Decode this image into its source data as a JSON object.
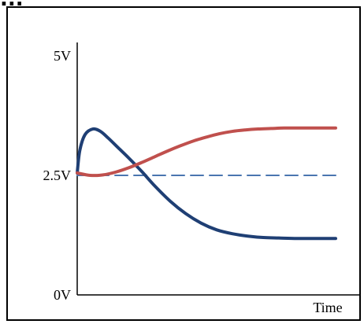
{
  "header": {
    "text": "..."
  },
  "chart_data": {
    "type": "line",
    "title": "",
    "xlabel": "Time",
    "ylabel": "",
    "y_ticks": [
      {
        "value": 5,
        "label": "5V"
      },
      {
        "value": 2.5,
        "label": "2.5V"
      },
      {
        "value": 0,
        "label": "0V"
      }
    ],
    "ylim": [
      0,
      5
    ],
    "xlim": [
      0,
      1
    ],
    "grid": false,
    "legend": "none",
    "series": [
      {
        "color": "#1f3f74",
        "style": "solid",
        "x": [
          0.0,
          0.01,
          0.03,
          0.06,
          0.09,
          0.12,
          0.16,
          0.2,
          0.25,
          0.3,
          0.36,
          0.42,
          0.48,
          0.54,
          0.6,
          0.66,
          0.72,
          0.78,
          0.85,
          0.92,
          1.0
        ],
        "y": [
          2.55,
          3.02,
          3.35,
          3.47,
          3.42,
          3.28,
          3.07,
          2.86,
          2.58,
          2.28,
          1.96,
          1.7,
          1.5,
          1.36,
          1.28,
          1.23,
          1.2,
          1.19,
          1.18,
          1.18,
          1.18
        ]
      },
      {
        "color": "#c0504d",
        "style": "solid",
        "x": [
          0.0,
          0.05,
          0.1,
          0.15,
          0.2,
          0.25,
          0.3,
          0.35,
          0.4,
          0.45,
          0.5,
          0.55,
          0.6,
          0.65,
          0.7,
          0.75,
          0.8,
          0.85,
          0.9,
          1.0
        ],
        "y": [
          2.55,
          2.5,
          2.51,
          2.57,
          2.66,
          2.77,
          2.89,
          3.01,
          3.12,
          3.22,
          3.3,
          3.37,
          3.42,
          3.45,
          3.47,
          3.48,
          3.49,
          3.49,
          3.49,
          3.49
        ]
      },
      {
        "color": "#4a76b0",
        "style": "dashed",
        "x": [
          0.0,
          1.0
        ],
        "y": [
          2.5,
          2.5
        ]
      }
    ]
  }
}
